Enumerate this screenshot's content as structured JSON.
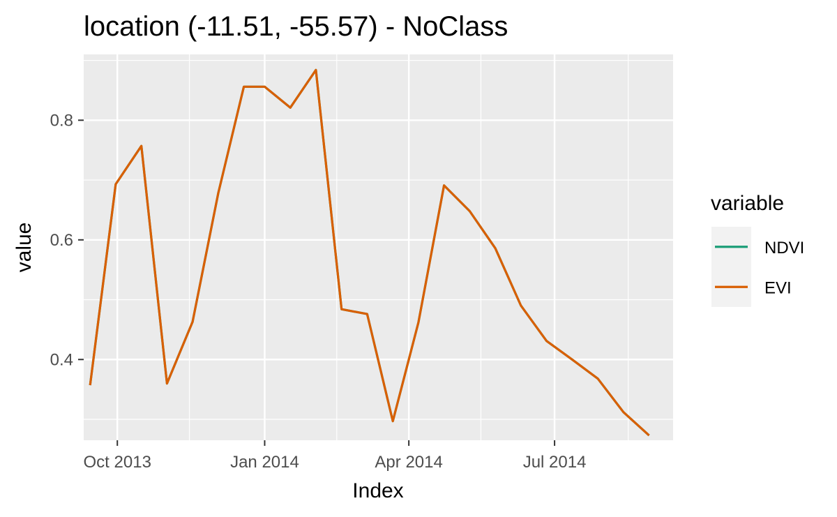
{
  "chart_data": {
    "type": "line",
    "title": "location (-11.51, -55.57) - NoClass",
    "xlabel": "Index",
    "ylabel": "value",
    "x_axis_type": "date",
    "xlim": [
      "2013-09-10",
      "2014-09-13"
    ],
    "ylim": [
      0.265,
      0.91
    ],
    "x_ticks": [
      {
        "date": "2013-10-01",
        "label": "Oct 2013"
      },
      {
        "date": "2014-01-01",
        "label": "Jan 2014"
      },
      {
        "date": "2014-04-01",
        "label": "Apr 2014"
      },
      {
        "date": "2014-07-01",
        "label": "Jul 2014"
      }
    ],
    "x_minor_ticks": [
      "2013-11-15",
      "2014-02-15",
      "2014-05-16",
      "2014-08-16"
    ],
    "y_ticks": [
      {
        "value": 0.4,
        "label": "0.4"
      },
      {
        "value": 0.6,
        "label": "0.6"
      },
      {
        "value": 0.8,
        "label": "0.8"
      }
    ],
    "y_minor_ticks": [
      0.3,
      0.5,
      0.7,
      0.9
    ],
    "grid": true,
    "legend": {
      "title": "variable",
      "position": "right"
    },
    "dates": [
      "2013-09-14",
      "2013-09-30",
      "2013-10-16",
      "2013-11-01",
      "2013-11-17",
      "2013-12-03",
      "2013-12-19",
      "2014-01-01",
      "2014-01-17",
      "2014-02-02",
      "2014-02-18",
      "2014-03-06",
      "2014-03-22",
      "2014-04-07",
      "2014-04-23",
      "2014-05-09",
      "2014-05-25",
      "2014-06-10",
      "2014-06-26",
      "2014-07-12",
      "2014-07-28",
      "2014-08-13",
      "2014-08-29"
    ],
    "series": [
      {
        "name": "NDVI",
        "color": "#1b9e77",
        "values": [
          0.357,
          0.693,
          0.757,
          0.36,
          0.463,
          0.678,
          0.856,
          0.856,
          0.821,
          0.884,
          0.484,
          0.476,
          0.297,
          0.462,
          0.691,
          0.648,
          0.586,
          0.49,
          0.431,
          0.4,
          0.368,
          0.312,
          0.273
        ]
      },
      {
        "name": "EVI",
        "color": "#d95f02",
        "values": [
          0.357,
          0.693,
          0.757,
          0.36,
          0.463,
          0.678,
          0.856,
          0.856,
          0.821,
          0.884,
          0.484,
          0.476,
          0.297,
          0.462,
          0.691,
          0.648,
          0.586,
          0.49,
          0.431,
          0.4,
          0.368,
          0.312,
          0.273
        ]
      }
    ]
  }
}
